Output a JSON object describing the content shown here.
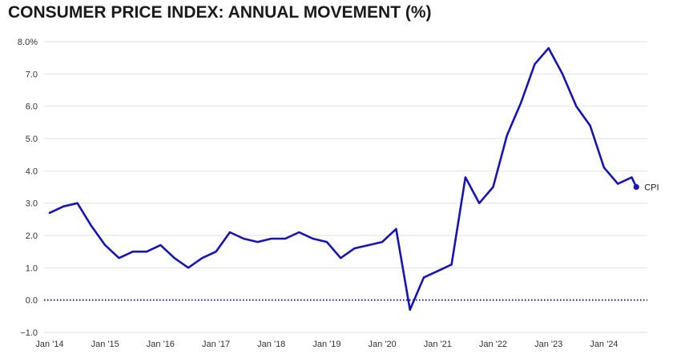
{
  "chart_data": {
    "type": "line",
    "title": "CONSUMER PRICE INDEX: ANNUAL MOVEMENT (%)",
    "xlabel": "",
    "ylabel": "",
    "ylim": [
      -1.0,
      8.0
    ],
    "yticks": [
      -1.0,
      0.0,
      1.0,
      2.0,
      3.0,
      4.0,
      5.0,
      6.0,
      7.0,
      8.0
    ],
    "ytick_labels": [
      "−1.0",
      "0.0",
      "1.0",
      "2.0",
      "3.0",
      "4.0",
      "5.0",
      "6.0",
      "7.0",
      "8.0%"
    ],
    "xtick_labels": [
      "Jan '14",
      "Jan '15",
      "Jan '16",
      "Jan '17",
      "Jan '18",
      "Jan '19",
      "Jan '20",
      "Jan '21",
      "Jan '22",
      "Jan '23",
      "Jan '24"
    ],
    "xtick_dates": [
      "2014-01",
      "2015-01",
      "2016-01",
      "2017-01",
      "2018-01",
      "2019-01",
      "2020-01",
      "2021-01",
      "2022-01",
      "2023-01",
      "2024-01"
    ],
    "x_start": "2014-01",
    "x_end": "2024-09",
    "grid": true,
    "zero_line_style": "dotted",
    "line_color": "#1515b5",
    "series": [
      {
        "name": "CPI",
        "x": [
          "2014-01",
          "2014-04",
          "2014-07",
          "2014-10",
          "2015-01",
          "2015-04",
          "2015-07",
          "2015-10",
          "2016-01",
          "2016-04",
          "2016-07",
          "2016-10",
          "2017-01",
          "2017-04",
          "2017-07",
          "2017-10",
          "2018-01",
          "2018-04",
          "2018-07",
          "2018-10",
          "2019-01",
          "2019-04",
          "2019-07",
          "2019-10",
          "2020-01",
          "2020-04",
          "2020-07",
          "2020-10",
          "2021-01",
          "2021-04",
          "2021-07",
          "2021-10",
          "2022-01",
          "2022-04",
          "2022-07",
          "2022-10",
          "2023-01",
          "2023-04",
          "2023-07",
          "2023-10",
          "2024-01",
          "2024-04",
          "2024-07",
          "2024-08"
        ],
        "values": [
          2.7,
          2.9,
          3.0,
          2.3,
          1.7,
          1.3,
          1.5,
          1.5,
          1.7,
          1.3,
          1.0,
          1.3,
          1.5,
          2.1,
          1.9,
          1.8,
          1.9,
          1.9,
          2.1,
          1.9,
          1.8,
          1.3,
          1.6,
          1.7,
          1.8,
          2.2,
          -0.3,
          0.7,
          0.9,
          1.1,
          3.8,
          3.0,
          3.5,
          5.1,
          6.1,
          7.3,
          7.8,
          7.0,
          6.0,
          5.4,
          4.1,
          3.6,
          3.8,
          3.5
        ]
      }
    ]
  }
}
